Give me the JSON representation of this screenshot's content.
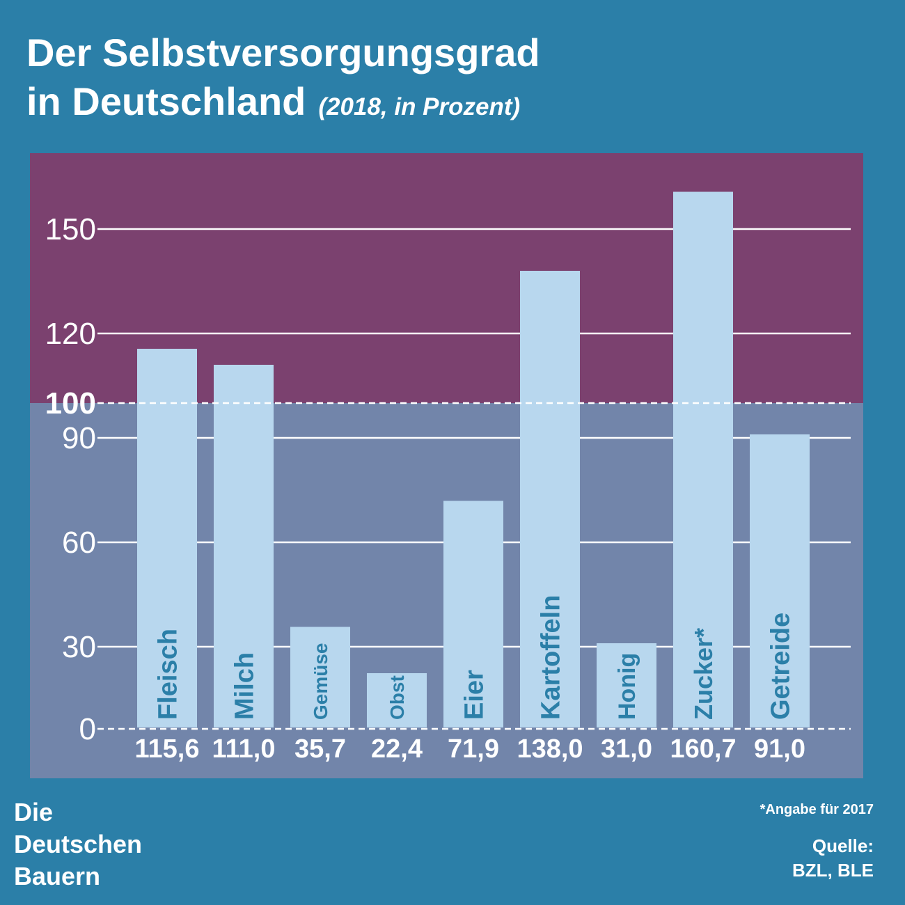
{
  "chart_data": {
    "type": "bar",
    "title": [
      "Der Selbstversorgungsgrad",
      "in Deutschland"
    ],
    "subtitle": "(2018, in Prozent)",
    "xlabel": "",
    "ylabel": "",
    "categories": [
      "Fleisch",
      "Milch",
      "Gemüse",
      "Obst",
      "Eier",
      "Kartoffeln",
      "Honig",
      "Zucker*",
      "Getreide"
    ],
    "values": [
      115.6,
      111.0,
      35.7,
      22.4,
      71.9,
      138.0,
      31.0,
      160.7,
      91.0
    ],
    "value_labels": [
      "115,6",
      "111,0",
      "35,7",
      "22,4",
      "71,9",
      "138,0",
      "31,0",
      "160,7",
      "91,0"
    ],
    "y_ticks": [
      0,
      30,
      60,
      90,
      120,
      150
    ],
    "reference_line": {
      "value": 100,
      "label": "100",
      "style": "dashed"
    },
    "ylim": [
      0,
      170
    ],
    "grid": true,
    "legend": "none"
  },
  "footer": {
    "logo_lines": [
      "Die",
      "Deutschen",
      "Bauern"
    ],
    "footnote": "*Angabe für 2017",
    "source_label": "Quelle:",
    "source": "BZL, BLE"
  },
  "colors": {
    "background": "#2b7fa8",
    "above_reference": "#7b416f",
    "below_reference": "#7285aa",
    "bar": "#b8d7ee",
    "category_label": "#2b7fa8",
    "text": "#ffffff"
  }
}
